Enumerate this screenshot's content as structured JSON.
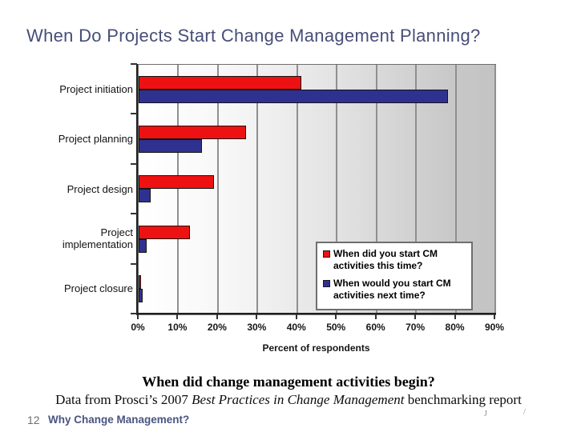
{
  "slide": {
    "title": "When Do Projects Start Change Management Planning?",
    "page_number": "12",
    "footer_title": "Why Change Management?"
  },
  "caption": {
    "heading": "When did change management activities begin?",
    "source_prefix": "Data from Prosci’s 2007 ",
    "source_italic": "Best Practices in Change Management",
    "source_suffix": " benchmarking report"
  },
  "artifacts": {
    "mark1": "J",
    "mark2": "/"
  },
  "colors": {
    "title_text": "#474e78",
    "footer_text": "#4b5480",
    "series_this_time": "#ee1111",
    "series_next_time": "#2f3191",
    "plot_gradient_right": "#c3c3c3",
    "gridline": "#8f8f8f"
  },
  "chart_data": {
    "type": "bar",
    "orientation": "horizontal",
    "categories": [
      "Project initiation",
      "Project planning",
      "Project design",
      "Project implementation",
      "Project closure"
    ],
    "series": [
      {
        "name": "When did you start CM activities this time?",
        "color": "#ee1111",
        "values": [
          41,
          27,
          19,
          13,
          0.5
        ]
      },
      {
        "name": "When would you start CM activities next time?",
        "color": "#2f3191",
        "values": [
          78,
          16,
          3,
          2,
          1
        ]
      }
    ],
    "xlabel": "Percent of respondents",
    "ylabel": "",
    "x_ticks": [
      "0%",
      "10%",
      "20%",
      "30%",
      "40%",
      "50%",
      "60%",
      "70%",
      "80%",
      "90%"
    ],
    "xlim": [
      0,
      90
    ],
    "grid": true,
    "gradient_background": true,
    "legend_position": "inside lower-right"
  }
}
